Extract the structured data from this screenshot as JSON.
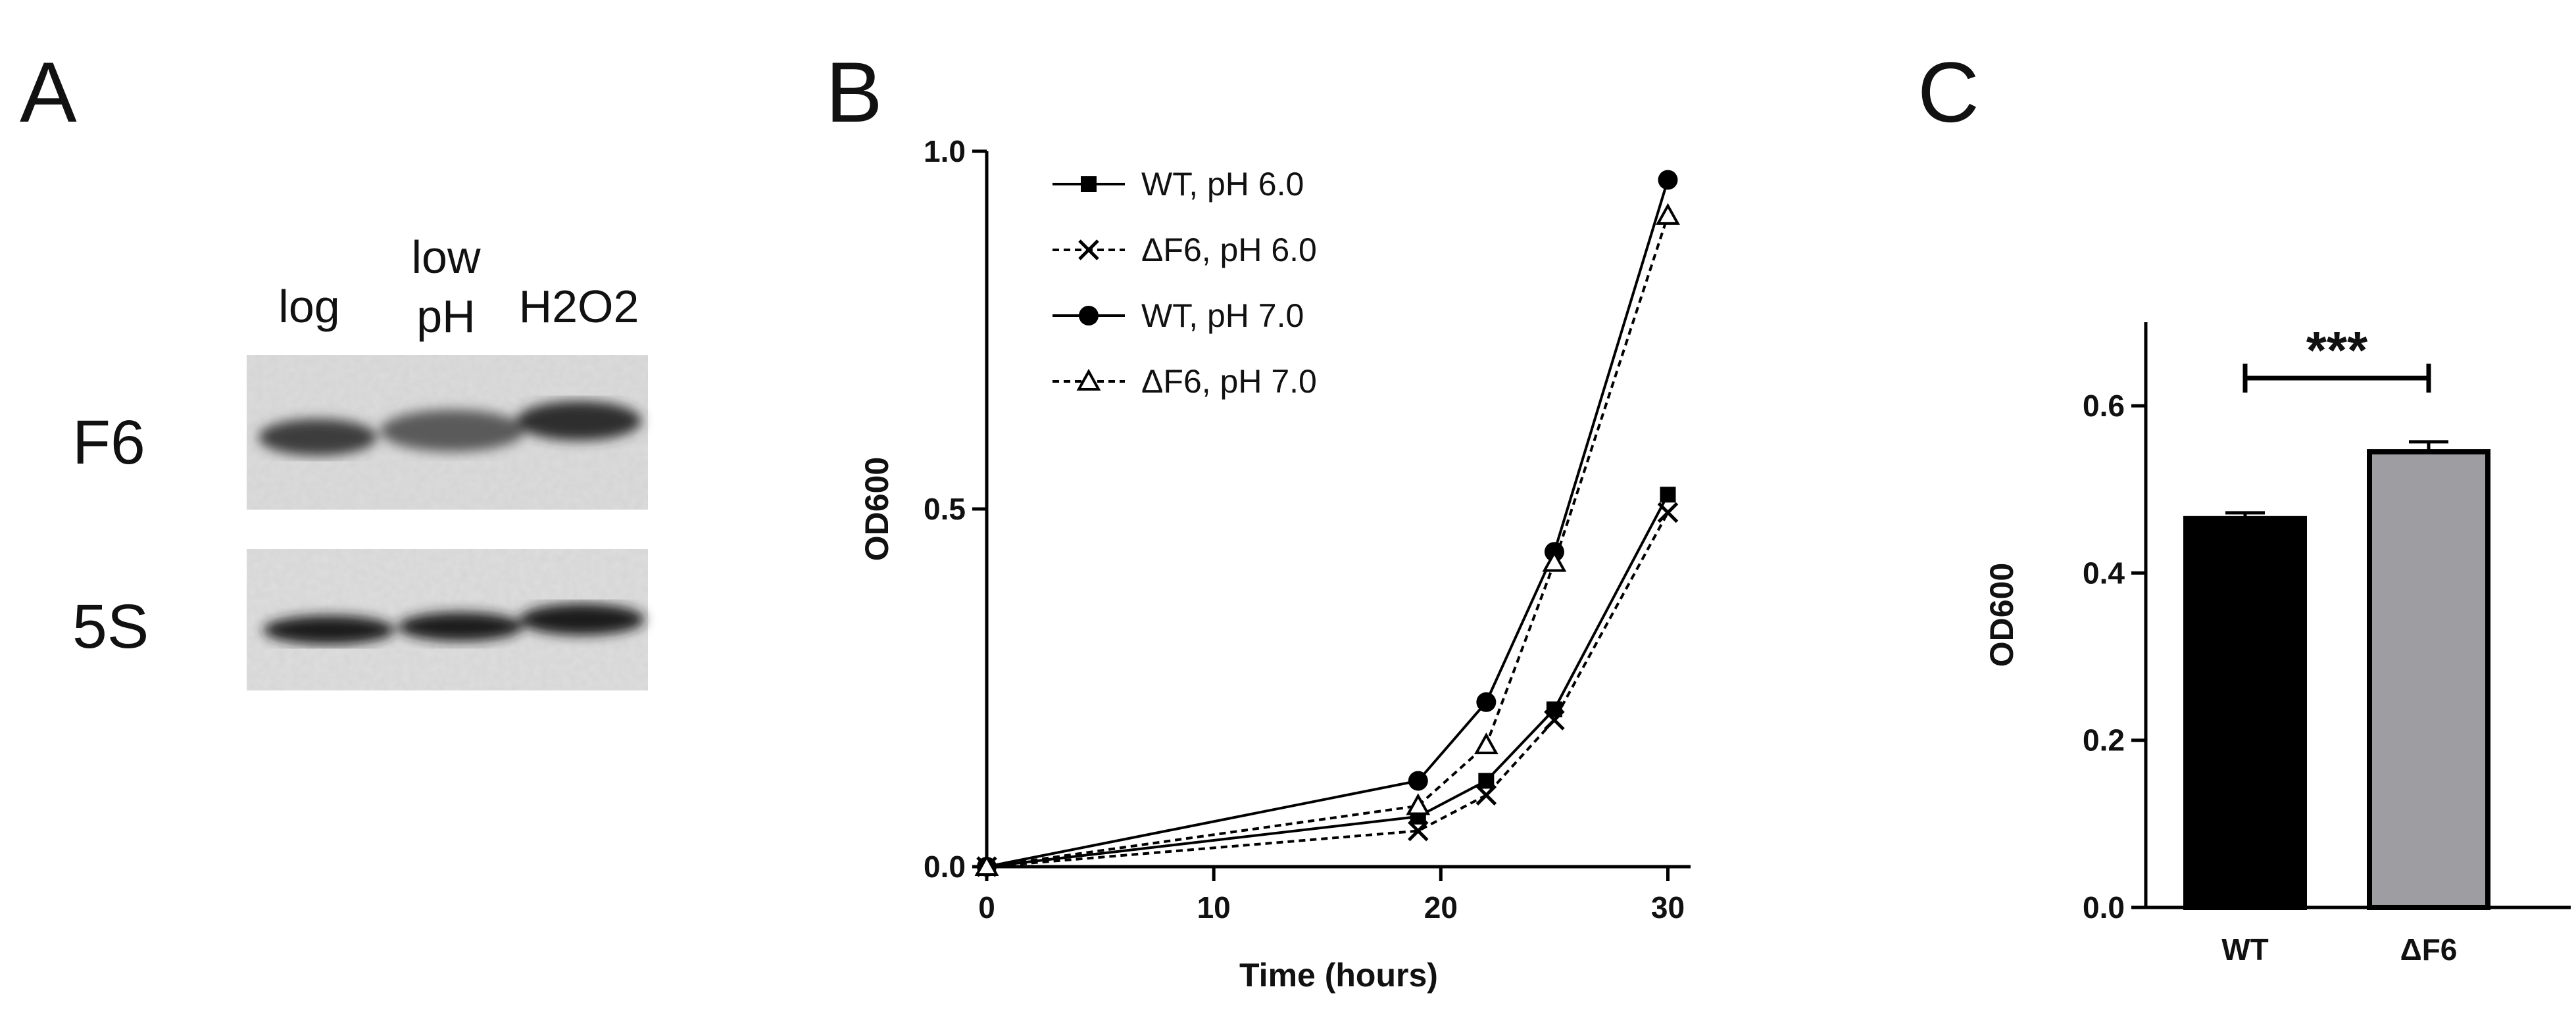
{
  "panels": {
    "a": {
      "letter": "A",
      "lanes": [
        {
          "line1": "",
          "line2": "log"
        },
        {
          "line1": "low",
          "line2": "pH"
        },
        {
          "line1": "",
          "line2": "H2O2"
        }
      ],
      "bands": [
        "F6",
        "5S"
      ]
    },
    "b": {
      "letter": "B"
    },
    "c": {
      "letter": "C"
    }
  },
  "chart_data": [
    {
      "type": "line",
      "panel": "B",
      "xlabel": "Time (hours)",
      "ylabel": "OD600",
      "xlim": [
        0,
        31
      ],
      "ylim": [
        0,
        1.0
      ],
      "x_ticks": [
        0,
        10,
        20,
        30
      ],
      "x_tick_labels": [
        "0",
        "10",
        "20",
        "30"
      ],
      "y_ticks": [
        0.0,
        0.5,
        1.0
      ],
      "y_tick_labels": [
        "0.0",
        "0.5",
        "1.0"
      ],
      "legend_position": "top-left",
      "series": [
        {
          "name": "WT, pH 6.0",
          "marker": "square",
          "dash": "solid",
          "x": [
            0,
            19,
            22,
            25,
            30
          ],
          "y": [
            0.0,
            0.07,
            0.12,
            0.22,
            0.52
          ]
        },
        {
          "name": "ΔF6, pH 6.0",
          "marker": "x",
          "dash": "dotted",
          "x": [
            0,
            19,
            22,
            25,
            30
          ],
          "y": [
            0.0,
            0.05,
            0.1,
            0.205,
            0.495
          ]
        },
        {
          "name": "WT, pH 7.0",
          "marker": "circle",
          "dash": "solid",
          "x": [
            0,
            19,
            22,
            25,
            30
          ],
          "y": [
            0.0,
            0.12,
            0.23,
            0.44,
            0.96
          ]
        },
        {
          "name": "ΔF6, pH 7.0",
          "marker": "triangle",
          "dash": "dotted",
          "x": [
            0,
            19,
            22,
            25,
            30
          ],
          "y": [
            0.0,
            0.085,
            0.17,
            0.425,
            0.91
          ]
        }
      ]
    },
    {
      "type": "bar",
      "panel": "C",
      "categories": [
        "WT",
        "ΔF6"
      ],
      "values": [
        0.465,
        0.545
      ],
      "errors": [
        0.007,
        0.012
      ],
      "bar_colors": [
        "#000000",
        "#9d9da2"
      ],
      "ylabel": "OD600",
      "ylim": [
        0,
        0.7
      ],
      "y_ticks": [
        0.0,
        0.2,
        0.4,
        0.6
      ],
      "y_tick_labels": [
        "0.0",
        "0.2",
        "0.4",
        "0.6"
      ],
      "significance": "***"
    }
  ]
}
